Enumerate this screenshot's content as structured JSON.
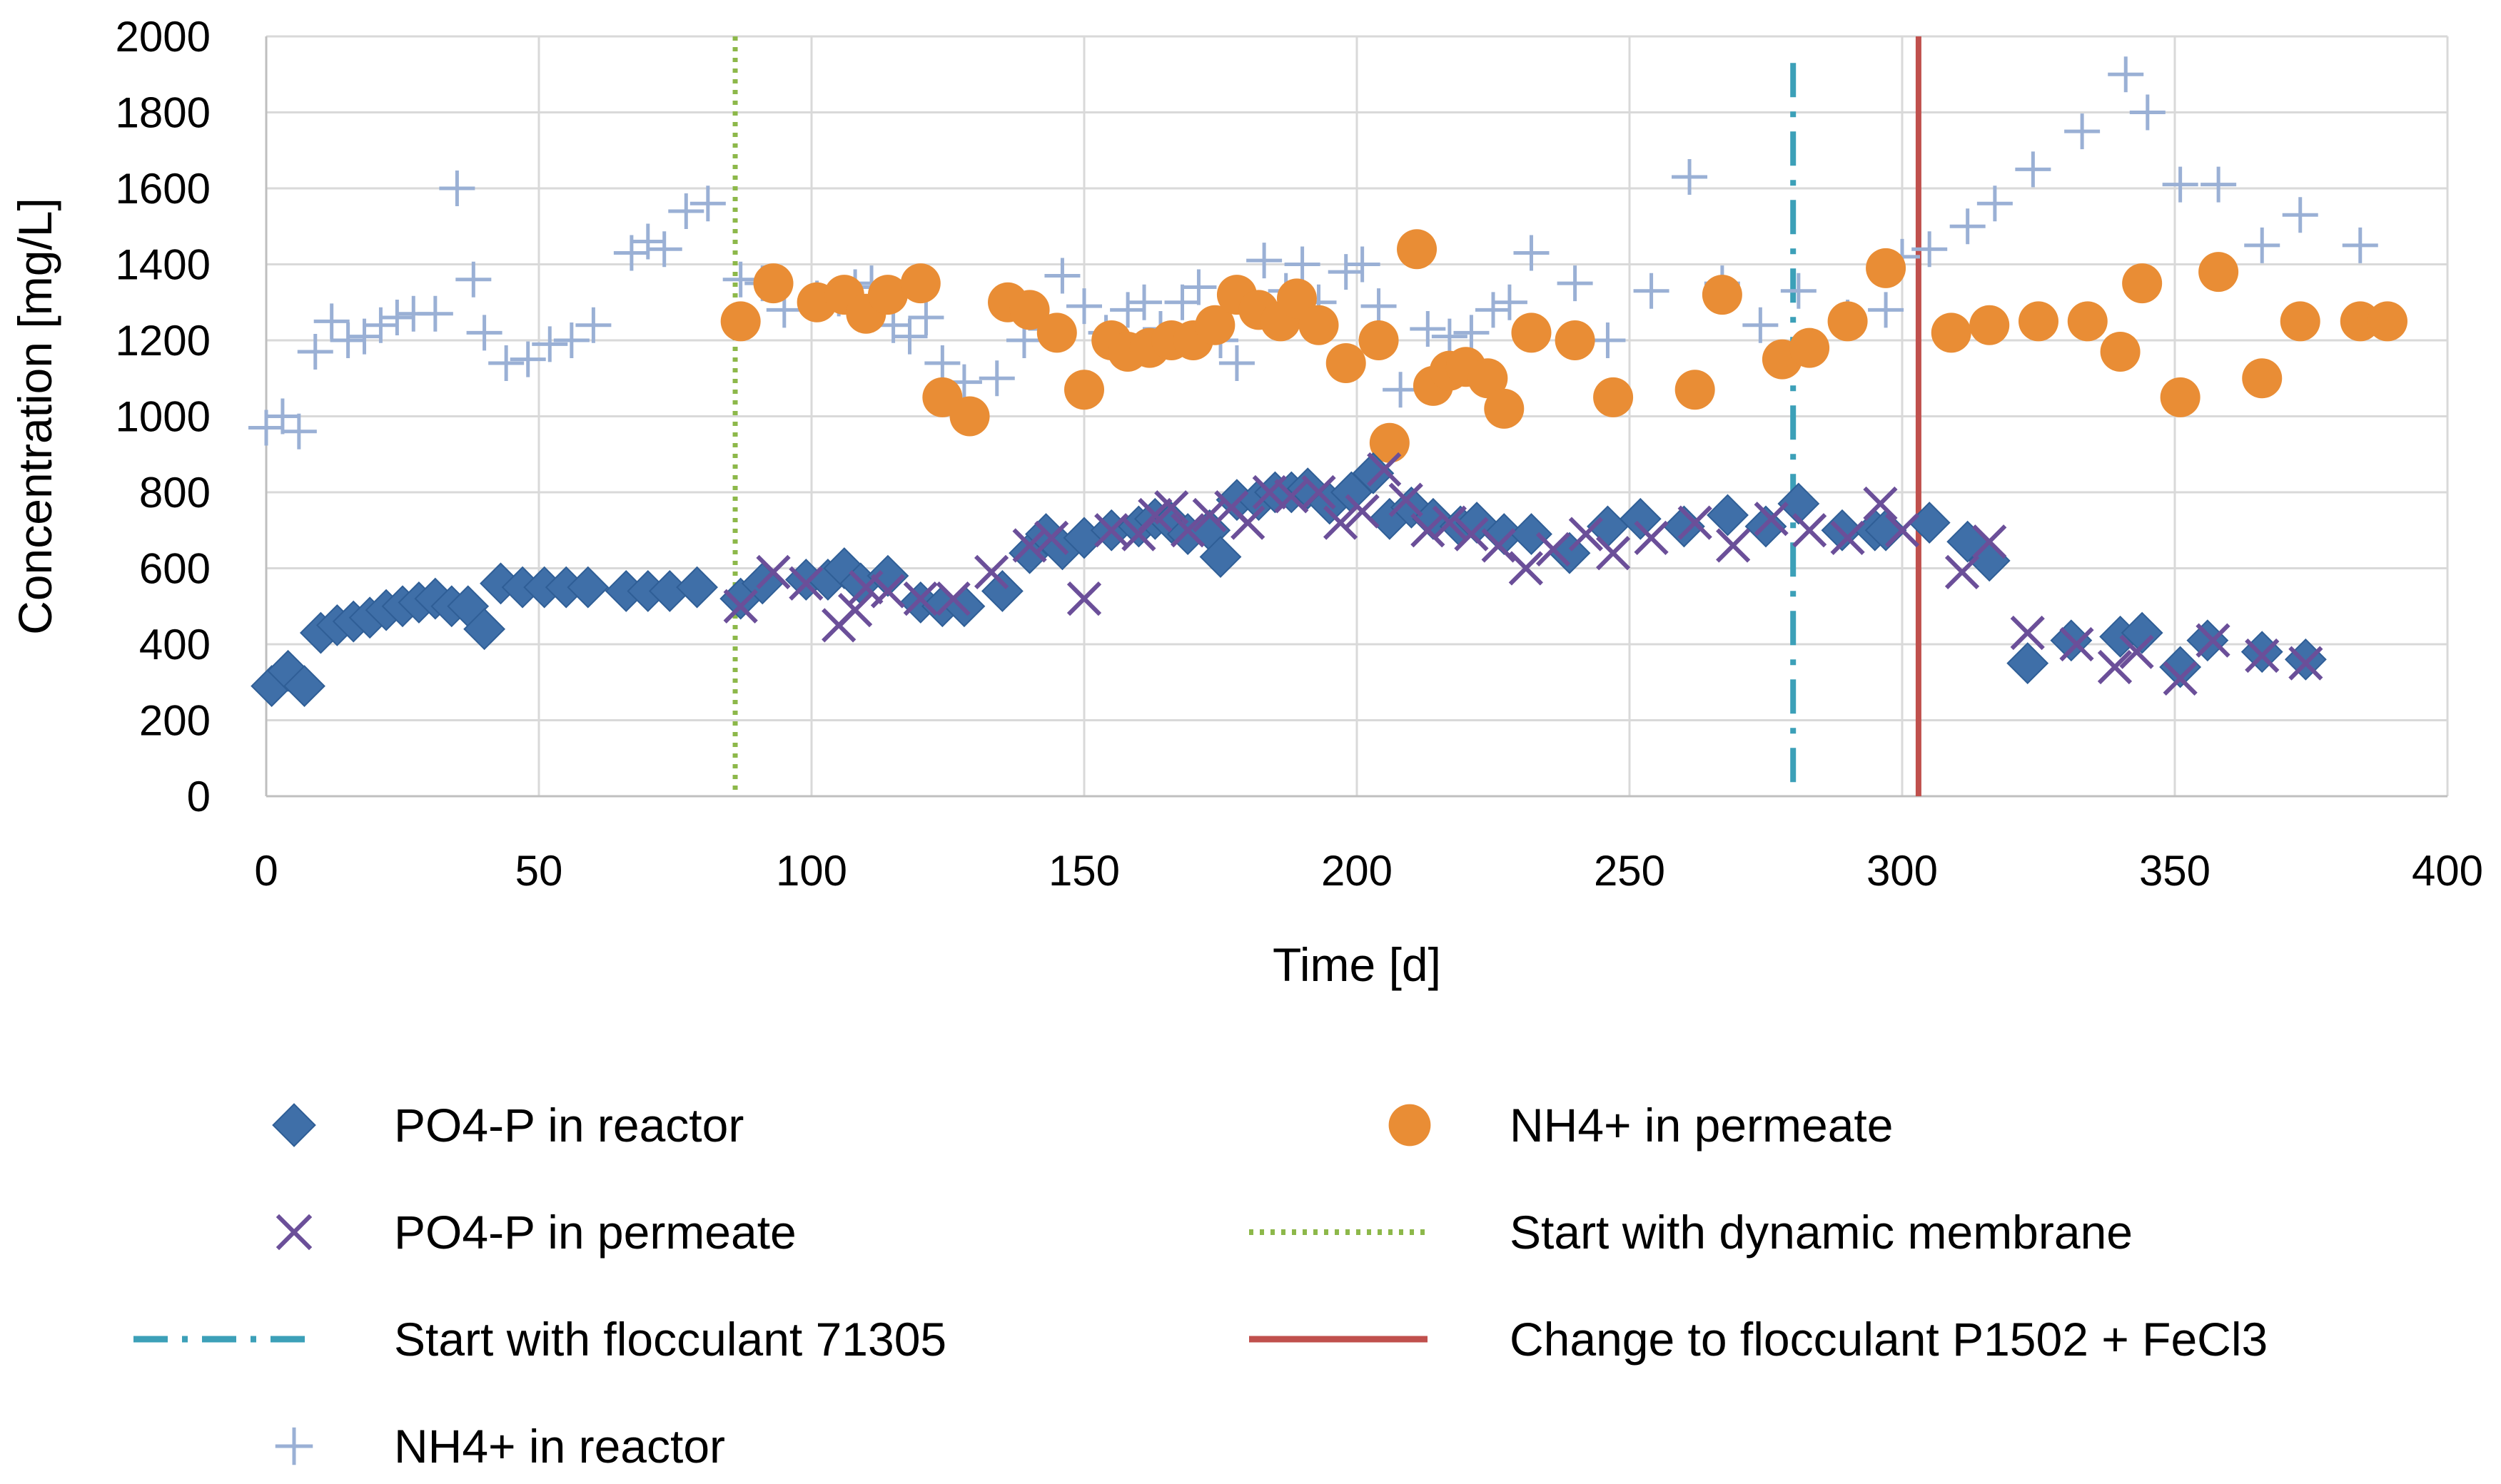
{
  "chart_data": {
    "type": "scatter",
    "title": "",
    "xlabel": "Time [d]",
    "ylabel": "Concentration [mg/L]",
    "xlim": [
      0,
      400
    ],
    "ylim": [
      0,
      2000
    ],
    "x_ticks": [
      0,
      50,
      100,
      150,
      200,
      250,
      300,
      350,
      400
    ],
    "y_ticks": [
      0,
      200,
      400,
      600,
      800,
      1000,
      1200,
      1400,
      1600,
      1800,
      2000
    ],
    "grid": true,
    "legend_position": "bottom",
    "series": [
      {
        "name": "PO4-P in reactor",
        "marker": "diamond",
        "color": "#3F6FA8",
        "points": [
          [
            1,
            290
          ],
          [
            4,
            330
          ],
          [
            7,
            290
          ],
          [
            10,
            430
          ],
          [
            13,
            450
          ],
          [
            16,
            460
          ],
          [
            19,
            470
          ],
          [
            22,
            490
          ],
          [
            25,
            500
          ],
          [
            28,
            510
          ],
          [
            31,
            520
          ],
          [
            34,
            500
          ],
          [
            37,
            500
          ],
          [
            40,
            440
          ],
          [
            43,
            560
          ],
          [
            47,
            550
          ],
          [
            51,
            550
          ],
          [
            55,
            550
          ],
          [
            59,
            550
          ],
          [
            66,
            540
          ],
          [
            70,
            540
          ],
          [
            74,
            540
          ],
          [
            79,
            550
          ],
          [
            87,
            520
          ],
          [
            91,
            560
          ],
          [
            99,
            570
          ],
          [
            103,
            570
          ],
          [
            106,
            600
          ],
          [
            109,
            560
          ],
          [
            114,
            580
          ],
          [
            120,
            510
          ],
          [
            124,
            500
          ],
          [
            128,
            500
          ],
          [
            135,
            540
          ],
          [
            140,
            640
          ],
          [
            143,
            690
          ],
          [
            146,
            650
          ],
          [
            150,
            680
          ],
          [
            155,
            700
          ],
          [
            160,
            710
          ],
          [
            163,
            730
          ],
          [
            166,
            720
          ],
          [
            169,
            690
          ],
          [
            173,
            700
          ],
          [
            175,
            630
          ],
          [
            178,
            780
          ],
          [
            182,
            780
          ],
          [
            185,
            800
          ],
          [
            188,
            800
          ],
          [
            191,
            810
          ],
          [
            195,
            770
          ],
          [
            199,
            800
          ],
          [
            203,
            850
          ],
          [
            206,
            730
          ],
          [
            210,
            760
          ],
          [
            214,
            730
          ],
          [
            219,
            710
          ],
          [
            222,
            720
          ],
          [
            227,
            690
          ],
          [
            232,
            690
          ],
          [
            239,
            640
          ],
          [
            246,
            710
          ],
          [
            252,
            730
          ],
          [
            260,
            710
          ],
          [
            268,
            740
          ],
          [
            275,
            710
          ],
          [
            281,
            770
          ],
          [
            289,
            700
          ],
          [
            295,
            700
          ],
          [
            297,
            700
          ],
          [
            305,
            720
          ],
          [
            312,
            670
          ],
          [
            316,
            620
          ],
          [
            323,
            350
          ],
          [
            331,
            410
          ],
          [
            340,
            420
          ],
          [
            344,
            430
          ],
          [
            351,
            340
          ],
          [
            356,
            410
          ],
          [
            366,
            380
          ],
          [
            374,
            360
          ]
        ]
      },
      {
        "name": "PO4-P in permeate",
        "marker": "x",
        "color": "#6B4F99",
        "points": [
          [
            87,
            500
          ],
          [
            93,
            590
          ],
          [
            99,
            560
          ],
          [
            105,
            450
          ],
          [
            108,
            490
          ],
          [
            110,
            550
          ],
          [
            114,
            540
          ],
          [
            120,
            520
          ],
          [
            126,
            520
          ],
          [
            133,
            590
          ],
          [
            140,
            660
          ],
          [
            144,
            680
          ],
          [
            150,
            520
          ],
          [
            155,
            700
          ],
          [
            160,
            690
          ],
          [
            163,
            740
          ],
          [
            166,
            760
          ],
          [
            169,
            700
          ],
          [
            173,
            740
          ],
          [
            177,
            760
          ],
          [
            180,
            720
          ],
          [
            184,
            800
          ],
          [
            188,
            790
          ],
          [
            193,
            800
          ],
          [
            197,
            720
          ],
          [
            201,
            750
          ],
          [
            205,
            860
          ],
          [
            209,
            780
          ],
          [
            213,
            700
          ],
          [
            217,
            720
          ],
          [
            221,
            690
          ],
          [
            226,
            660
          ],
          [
            231,
            600
          ],
          [
            236,
            650
          ],
          [
            242,
            690
          ],
          [
            247,
            640
          ],
          [
            254,
            680
          ],
          [
            262,
            720
          ],
          [
            269,
            660
          ],
          [
            276,
            730
          ],
          [
            283,
            700
          ],
          [
            290,
            680
          ],
          [
            296,
            770
          ],
          [
            300,
            700
          ],
          [
            311,
            590
          ],
          [
            316,
            670
          ],
          [
            323,
            430
          ],
          [
            332,
            400
          ],
          [
            339,
            340
          ],
          [
            343,
            380
          ],
          [
            351,
            310
          ],
          [
            357,
            410
          ],
          [
            366,
            370
          ],
          [
            374,
            350
          ]
        ]
      },
      {
        "name": "NH4+ in reactor",
        "marker": "plus",
        "color": "#9AB0D5",
        "points": [
          [
            0,
            970
          ],
          [
            3,
            1000
          ],
          [
            6,
            960
          ],
          [
            9,
            1170
          ],
          [
            12,
            1250
          ],
          [
            15,
            1200
          ],
          [
            18,
            1210
          ],
          [
            21,
            1240
          ],
          [
            24,
            1260
          ],
          [
            27,
            1270
          ],
          [
            31,
            1270
          ],
          [
            35,
            1600
          ],
          [
            38,
            1360
          ],
          [
            40,
            1220
          ],
          [
            44,
            1140
          ],
          [
            48,
            1150
          ],
          [
            52,
            1190
          ],
          [
            56,
            1200
          ],
          [
            60,
            1240
          ],
          [
            67,
            1430
          ],
          [
            70,
            1460
          ],
          [
            73,
            1440
          ],
          [
            77,
            1540
          ],
          [
            81,
            1560
          ],
          [
            87,
            1360
          ],
          [
            91,
            1350
          ],
          [
            95,
            1280
          ],
          [
            101,
            1310
          ],
          [
            105,
            1310
          ],
          [
            108,
            1340
          ],
          [
            111,
            1350
          ],
          [
            115,
            1240
          ],
          [
            118,
            1210
          ],
          [
            121,
            1260
          ],
          [
            124,
            1140
          ],
          [
            128,
            1090
          ],
          [
            134,
            1100
          ],
          [
            139,
            1200
          ],
          [
            143,
            1230
          ],
          [
            146,
            1370
          ],
          [
            150,
            1290
          ],
          [
            154,
            1220
          ],
          [
            158,
            1280
          ],
          [
            161,
            1300
          ],
          [
            164,
            1230
          ],
          [
            168,
            1300
          ],
          [
            171,
            1340
          ],
          [
            175,
            1200
          ],
          [
            178,
            1140
          ],
          [
            183,
            1410
          ],
          [
            187,
            1330
          ],
          [
            190,
            1400
          ],
          [
            193,
            1300
          ],
          [
            198,
            1380
          ],
          [
            201,
            1400
          ],
          [
            204,
            1290
          ],
          [
            208,
            1070
          ],
          [
            213,
            1230
          ],
          [
            217,
            1210
          ],
          [
            221,
            1220
          ],
          [
            225,
            1280
          ],
          [
            228,
            1300
          ],
          [
            232,
            1430
          ],
          [
            240,
            1350
          ],
          [
            246,
            1200
          ],
          [
            254,
            1330
          ],
          [
            261,
            1630
          ],
          [
            267,
            1350
          ],
          [
            274,
            1240
          ],
          [
            281,
            1330
          ],
          [
            290,
            1260
          ],
          [
            297,
            1280
          ],
          [
            300,
            1420
          ],
          [
            305,
            1440
          ],
          [
            312,
            1500
          ],
          [
            317,
            1560
          ],
          [
            324,
            1650
          ],
          [
            333,
            1750
          ],
          [
            341,
            1900
          ],
          [
            345,
            1800
          ],
          [
            351,
            1610
          ],
          [
            358,
            1610
          ],
          [
            366,
            1450
          ],
          [
            373,
            1530
          ],
          [
            384,
            1450
          ]
        ]
      },
      {
        "name": "NH4+ in permeate",
        "marker": "circle",
        "color": "#E98D35",
        "points": [
          [
            87,
            1250
          ],
          [
            93,
            1350
          ],
          [
            101,
            1300
          ],
          [
            106,
            1320
          ],
          [
            110,
            1270
          ],
          [
            114,
            1320
          ],
          [
            120,
            1350
          ],
          [
            124,
            1050
          ],
          [
            129,
            1000
          ],
          [
            136,
            1300
          ],
          [
            140,
            1280
          ],
          [
            145,
            1220
          ],
          [
            150,
            1070
          ],
          [
            155,
            1200
          ],
          [
            158,
            1170
          ],
          [
            162,
            1180
          ],
          [
            166,
            1200
          ],
          [
            170,
            1200
          ],
          [
            174,
            1240
          ],
          [
            178,
            1320
          ],
          [
            182,
            1280
          ],
          [
            186,
            1250
          ],
          [
            189,
            1310
          ],
          [
            193,
            1240
          ],
          [
            198,
            1140
          ],
          [
            204,
            1200
          ],
          [
            206,
            930
          ],
          [
            211,
            1440
          ],
          [
            214,
            1080
          ],
          [
            217,
            1120
          ],
          [
            220,
            1130
          ],
          [
            224,
            1100
          ],
          [
            227,
            1020
          ],
          [
            232,
            1220
          ],
          [
            240,
            1200
          ],
          [
            247,
            1050
          ],
          [
            262,
            1070
          ],
          [
            267,
            1320
          ],
          [
            278,
            1150
          ],
          [
            283,
            1180
          ],
          [
            290,
            1250
          ],
          [
            297,
            1390
          ],
          [
            309,
            1220
          ],
          [
            316,
            1240
          ],
          [
            325,
            1250
          ],
          [
            334,
            1250
          ],
          [
            340,
            1170
          ],
          [
            344,
            1350
          ],
          [
            351,
            1050
          ],
          [
            358,
            1380
          ],
          [
            366,
            1100
          ],
          [
            373,
            1250
          ],
          [
            384,
            1250
          ],
          [
            389,
            1250
          ]
        ]
      }
    ],
    "vertical_lines": [
      {
        "name": "Start with dynamic membrane",
        "x": 86,
        "y_range": [
          0,
          2000
        ],
        "style": "dotted",
        "color": "#8DB84A"
      },
      {
        "name": "Start with flocculant 71305",
        "x": 280,
        "y_range": [
          0,
          1930
        ],
        "style": "dashdot",
        "color": "#3CA0B8"
      },
      {
        "name": "Change to flocculant P1502 + FeCl3",
        "x": 303,
        "y_range": [
          0,
          2000
        ],
        "style": "solid",
        "color": "#C0504D"
      }
    ]
  }
}
